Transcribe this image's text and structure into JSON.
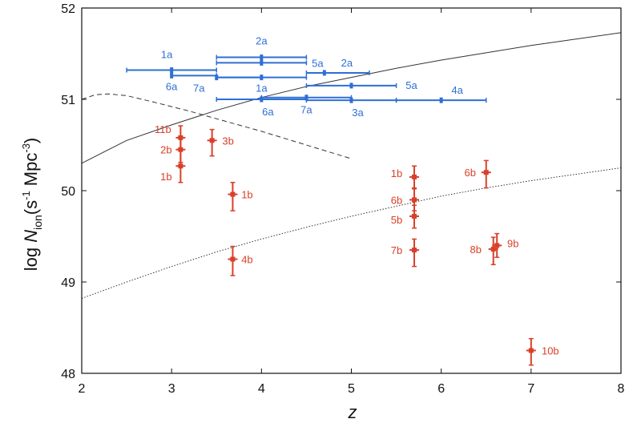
{
  "chart_data": {
    "type": "scatter",
    "title": "",
    "xlabel": "z",
    "ylabel": {
      "prefix": "log ",
      "N": "N",
      "sub": "ion",
      "unit_open": "(s",
      "unit_exp1": "-1",
      "unit_mid": " Mpc",
      "unit_exp2": "-3",
      "unit_close": ")"
    },
    "xlim": [
      2,
      8
    ],
    "ylim": [
      48,
      52
    ],
    "xticks": [
      "2",
      "3",
      "4",
      "5",
      "6",
      "7",
      "8"
    ],
    "yticks": [
      "48",
      "49",
      "50",
      "51",
      "52"
    ],
    "grid": false,
    "colors": {
      "series_a": "#2e6fd6",
      "series_b": "#d8402a",
      "curves": "#333333"
    },
    "series": [
      {
        "key": "a",
        "color": "#2e6fd6",
        "points": [
          {
            "label": "1a",
            "x": 3.0,
            "y": 51.32,
            "xerr": [
              0.5,
              0.5
            ],
            "label_dx": -6,
            "label_dy": -15
          },
          {
            "label": "2a",
            "x": 4.0,
            "y": 51.46,
            "xerr": [
              0.5,
              0.5
            ],
            "label_dx": 0,
            "label_dy": -16
          },
          {
            "label": "5a",
            "x": 4.0,
            "y": 51.4,
            "xerr": [
              0.5,
              0.5
            ],
            "label_dx": 70,
            "label_dy": 5
          },
          {
            "label": "6a",
            "x": 3.0,
            "y": 51.26,
            "xerr": [
              0.0,
              0.5
            ],
            "label_dx": 0,
            "label_dy": 18
          },
          {
            "label": "7a",
            "x": 3.5,
            "y": 51.24,
            "xerr": [
              0.0,
              0.5
            ],
            "label_dx": -22,
            "label_dy": 18
          },
          {
            "label": "1a",
            "x": 4.0,
            "y": 51.24,
            "xerr": [
              0.5,
              0.5
            ],
            "label_dx": 0,
            "label_dy": 18
          },
          {
            "label": "2a",
            "x": 4.7,
            "y": 51.29,
            "xerr": [
              0.2,
              0.5
            ],
            "label_dx": 28,
            "label_dy": -8
          },
          {
            "label": "5a",
            "x": 5.0,
            "y": 51.15,
            "xerr": [
              0.5,
              0.5
            ],
            "label_dx": 75,
            "label_dy": 4
          },
          {
            "label": "4a",
            "x": 6.0,
            "y": 50.99,
            "xerr": [
              0.5,
              0.5
            ],
            "label_dx": 20,
            "label_dy": -8
          },
          {
            "label": "6a",
            "x": 4.0,
            "y": 51.0,
            "xerr": [
              0.5,
              0.5
            ],
            "label_dx": 8,
            "label_dy": 20
          },
          {
            "label": "7a",
            "x": 4.5,
            "y": 51.02,
            "xerr": [
              0.5,
              0.5
            ],
            "label_dx": 0,
            "label_dy": 20
          },
          {
            "label": "3a",
            "x": 5.0,
            "y": 50.99,
            "xerr": [
              0.5,
              0.5
            ],
            "label_dx": 8,
            "label_dy": 20
          }
        ]
      },
      {
        "key": "b",
        "color": "#d8402a",
        "points": [
          {
            "label": "11b",
            "x": 3.1,
            "y": 50.58,
            "yerr": [
              0.13,
              0.13
            ],
            "label_dx": -22,
            "label_dy": -6
          },
          {
            "label": "2b",
            "x": 3.1,
            "y": 50.45,
            "yerr": [
              0.14,
              0.14
            ],
            "label_dx": -18,
            "label_dy": 5
          },
          {
            "label": "1b",
            "x": 3.1,
            "y": 50.27,
            "yerr": [
              0.18,
              0.18
            ],
            "label_dx": -18,
            "label_dy": 18
          },
          {
            "label": "3b",
            "x": 3.45,
            "y": 50.55,
            "yerr": [
              0.17,
              0.12
            ],
            "label_dx": 20,
            "label_dy": 5
          },
          {
            "label": "1b",
            "x": 3.68,
            "y": 49.96,
            "yerr": [
              0.18,
              0.13
            ],
            "label_dx": 18,
            "label_dy": 5
          },
          {
            "label": "4b",
            "x": 3.68,
            "y": 49.25,
            "yerr": [
              0.18,
              0.14
            ],
            "label_dx": 18,
            "label_dy": 5
          },
          {
            "label": "1b",
            "x": 5.7,
            "y": 50.15,
            "yerr": [
              0.12,
              0.12
            ],
            "label_dx": -22,
            "label_dy": 0
          },
          {
            "label": "6b",
            "x": 5.7,
            "y": 49.9,
            "yerr": [
              0.12,
              0.12
            ],
            "label_dx": -22,
            "label_dy": 5
          },
          {
            "label": "5b",
            "x": 5.7,
            "y": 49.72,
            "yerr": [
              0.13,
              0.12
            ],
            "label_dx": -22,
            "label_dy": 9
          },
          {
            "label": "7b",
            "x": 5.7,
            "y": 49.35,
            "yerr": [
              0.18,
              0.12
            ],
            "label_dx": -22,
            "label_dy": 5
          },
          {
            "label": "6b",
            "x": 6.5,
            "y": 50.2,
            "yerr": [
              0.17,
              0.13
            ],
            "label_dx": -20,
            "label_dy": 5
          },
          {
            "label": "8b",
            "x": 6.58,
            "y": 49.36,
            "yerr": [
              0.17,
              0.13
            ],
            "label_dx": -22,
            "label_dy": 5
          },
          {
            "label": "9b",
            "x": 6.62,
            "y": 49.4,
            "yerr": [
              0.13,
              0.13
            ],
            "label_dx": 20,
            "label_dy": 2
          },
          {
            "label": "10b",
            "x": 7.0,
            "y": 48.25,
            "yerr": [
              0.16,
              0.13
            ],
            "label_dx": 24,
            "label_dy": 5
          }
        ]
      }
    ],
    "curves": [
      {
        "style": "solid",
        "x": [
          2.0,
          2.5,
          3.0,
          3.5,
          4.0,
          4.5,
          5.0,
          5.5,
          6.0,
          6.5,
          7.0,
          7.5,
          8.0
        ],
        "y": [
          50.3,
          50.55,
          50.72,
          50.88,
          51.02,
          51.14,
          51.24,
          51.34,
          51.43,
          51.51,
          51.59,
          51.66,
          51.73
        ]
      },
      {
        "style": "dashed",
        "x": [
          2.0,
          2.15,
          2.3,
          2.5,
          2.8,
          3.2,
          3.6,
          4.0,
          4.5,
          5.0
        ],
        "y": [
          51.0,
          51.05,
          51.06,
          51.04,
          50.97,
          50.87,
          50.76,
          50.65,
          50.5,
          50.35
        ]
      },
      {
        "style": "dotted",
        "x": [
          2.0,
          2.5,
          3.0,
          3.5,
          4.0,
          4.5,
          5.0,
          5.5,
          6.0,
          6.5,
          7.0,
          7.5,
          8.0
        ],
        "y": [
          48.82,
          49.0,
          49.17,
          49.33,
          49.47,
          49.6,
          49.72,
          49.83,
          49.94,
          50.03,
          50.11,
          50.18,
          50.25
        ]
      }
    ]
  }
}
